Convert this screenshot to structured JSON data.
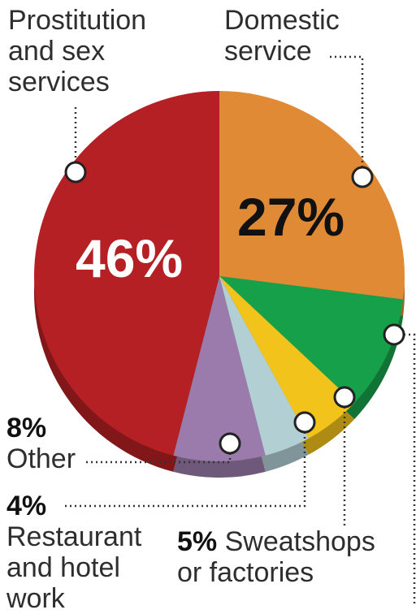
{
  "chart_data": {
    "type": "pie",
    "slices": [
      {
        "label": "Domestic service",
        "value": 27,
        "value_label": "27%",
        "color": "#e08a35"
      },
      {
        "label": "Other",
        "value": 10,
        "value_label": "",
        "color": "#17a04a"
      },
      {
        "label": "Sweatshops or factories",
        "value": 5,
        "value_label": "5%",
        "color": "#f2c31b"
      },
      {
        "label": "Restaurant and hotel work",
        "value": 4,
        "value_label": "4%",
        "color": "#b2cfd4"
      },
      {
        "label": "Other",
        "value": 8,
        "value_label": "8%",
        "color": "#9a7bab"
      },
      {
        "label": "Prostitution and sex services",
        "value": 46,
        "value_label": "46%",
        "color": "#b52024"
      }
    ],
    "start_angle_deg": 0,
    "direction": "clockwise",
    "three_d": true
  },
  "labels": {
    "prostitution_line1": "Prostitution",
    "prostitution_line2": "and sex",
    "prostitution_line3": "services",
    "domestic_line1": "Domestic",
    "domestic_line2": "service",
    "inner_46": "46%",
    "inner_27": "27%",
    "other_pct": "8%",
    "other_name": "Other",
    "restaurant_pct": "4%",
    "restaurant_line1": "Restaurant",
    "restaurant_line2": "and hotel",
    "restaurant_line3": "work",
    "sweatshop_pct": "5%",
    "sweatshop_line1": "Sweatshops",
    "sweatshop_line2": "or factories"
  }
}
